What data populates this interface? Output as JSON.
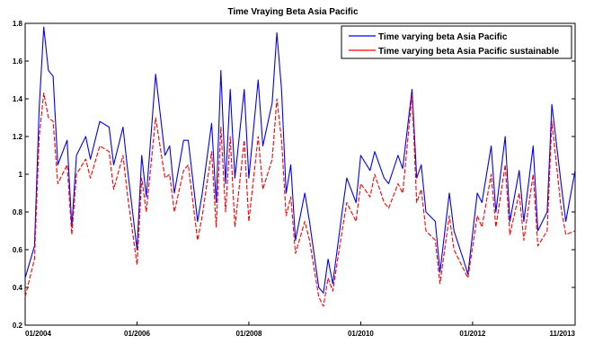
{
  "chart_data": {
    "type": "line",
    "title": "Time Vraying Beta  Asia Pacific",
    "xlabel": "",
    "ylabel": "",
    "x_tick_labels": [
      "01/2004",
      "01/2006",
      "01/2008",
      "01/2010",
      "01/2012",
      "11/2013"
    ],
    "x_ticks": [
      "2004-01",
      "2006-01",
      "2008-01",
      "2010-01",
      "2012-01",
      "2013-11"
    ],
    "xlim": [
      "2004-01",
      "2013-11"
    ],
    "ylim": [
      0.2,
      1.8
    ],
    "y_ticks": [
      0.2,
      0.4,
      0.6,
      0.8,
      1.0,
      1.2,
      1.4,
      1.6,
      1.8
    ],
    "y_tick_labels": [
      "0.2",
      "0.4",
      "0.6",
      "0.8",
      "1",
      "1.2",
      "1.4",
      "1.6",
      "1.8"
    ],
    "grid": false,
    "legend_position": "top-right",
    "series": [
      {
        "name": "Time varying beta Asia Pacific",
        "color": "#0000ff",
        "x": [
          "2004-01",
          "2004-03",
          "2004-04",
          "2004-05",
          "2004-06",
          "2004-07",
          "2004-08",
          "2004-10",
          "2004-11",
          "2004-12",
          "2005-02",
          "2005-03",
          "2005-05",
          "2005-07",
          "2005-08",
          "2005-10",
          "2005-11",
          "2006-01",
          "2006-02",
          "2006-03",
          "2006-05",
          "2006-07",
          "2006-08",
          "2006-09",
          "2006-11",
          "2006-12",
          "2007-02",
          "2007-03",
          "2007-05",
          "2007-06",
          "2007-07",
          "2007-08",
          "2007-09",
          "2007-10",
          "2007-12",
          "2008-01",
          "2008-03",
          "2008-04",
          "2008-06",
          "2008-07",
          "2008-08",
          "2008-09",
          "2008-10",
          "2008-11",
          "2009-01",
          "2009-02",
          "2009-04",
          "2009-05",
          "2009-06",
          "2009-07",
          "2009-09",
          "2009-10",
          "2009-12",
          "2010-01",
          "2010-03",
          "2010-04",
          "2010-06",
          "2010-07",
          "2010-09",
          "2010-10",
          "2010-12",
          "2011-01",
          "2011-02",
          "2011-03",
          "2011-05",
          "2011-06",
          "2011-08",
          "2011-09",
          "2011-11",
          "2011-12",
          "2012-02",
          "2012-03",
          "2012-05",
          "2012-06",
          "2012-08",
          "2012-09",
          "2012-11",
          "2012-12",
          "2013-02",
          "2013-03",
          "2013-05",
          "2013-06",
          "2013-08",
          "2013-09",
          "2013-11"
        ],
        "y": [
          0.45,
          0.62,
          1.35,
          1.78,
          1.55,
          1.52,
          1.05,
          1.18,
          0.72,
          1.1,
          1.2,
          1.08,
          1.28,
          1.25,
          1.05,
          1.25,
          1.02,
          0.6,
          1.1,
          0.88,
          1.53,
          1.1,
          1.15,
          0.9,
          1.18,
          1.18,
          0.75,
          0.9,
          1.27,
          0.85,
          1.55,
          0.95,
          1.45,
          0.98,
          1.45,
          0.98,
          1.5,
          1.15,
          1.38,
          1.75,
          1.45,
          0.9,
          1.05,
          0.65,
          0.9,
          0.75,
          0.4,
          0.37,
          0.55,
          0.42,
          0.8,
          0.98,
          0.85,
          1.1,
          1.02,
          1.12,
          0.98,
          0.95,
          1.1,
          1.03,
          1.45,
          0.98,
          1.05,
          0.8,
          0.75,
          0.48,
          0.9,
          0.7,
          0.55,
          0.47,
          0.9,
          0.85,
          1.15,
          0.8,
          1.2,
          0.75,
          1.02,
          0.75,
          1.15,
          0.7,
          0.8,
          1.37,
          0.95,
          0.75,
          1.02
        ]
      },
      {
        "name": "Time varying beta Asia Pacific sustainable",
        "color": "#ff0000",
        "x": [
          "2004-01",
          "2004-03",
          "2004-04",
          "2004-05",
          "2004-06",
          "2004-07",
          "2004-08",
          "2004-10",
          "2004-11",
          "2004-12",
          "2005-02",
          "2005-03",
          "2005-05",
          "2005-07",
          "2005-08",
          "2005-10",
          "2005-11",
          "2006-01",
          "2006-02",
          "2006-03",
          "2006-05",
          "2006-07",
          "2006-08",
          "2006-09",
          "2006-11",
          "2006-12",
          "2007-02",
          "2007-03",
          "2007-05",
          "2007-06",
          "2007-07",
          "2007-08",
          "2007-09",
          "2007-10",
          "2007-12",
          "2008-01",
          "2008-03",
          "2008-04",
          "2008-06",
          "2008-07",
          "2008-08",
          "2008-09",
          "2008-10",
          "2008-11",
          "2009-01",
          "2009-02",
          "2009-04",
          "2009-05",
          "2009-06",
          "2009-07",
          "2009-09",
          "2009-10",
          "2009-12",
          "2010-01",
          "2010-03",
          "2010-04",
          "2010-06",
          "2010-07",
          "2010-09",
          "2010-10",
          "2010-12",
          "2011-01",
          "2011-02",
          "2011-03",
          "2011-05",
          "2011-06",
          "2011-08",
          "2011-09",
          "2011-11",
          "2011-12",
          "2012-02",
          "2012-03",
          "2012-05",
          "2012-06",
          "2012-08",
          "2012-09",
          "2012-11",
          "2012-12",
          "2013-02",
          "2013-03",
          "2013-05",
          "2013-06",
          "2013-08",
          "2013-09",
          "2013-11"
        ],
        "y": [
          0.35,
          0.55,
          1.2,
          1.43,
          1.3,
          1.28,
          0.95,
          1.05,
          0.68,
          1.0,
          1.08,
          0.98,
          1.15,
          1.12,
          0.92,
          1.1,
          0.88,
          0.52,
          0.98,
          0.8,
          1.3,
          0.98,
          1.0,
          0.8,
          1.02,
          1.05,
          0.65,
          0.78,
          1.12,
          0.72,
          1.25,
          0.8,
          1.2,
          0.72,
          1.18,
          0.75,
          1.2,
          0.92,
          1.08,
          1.4,
          1.18,
          0.78,
          0.88,
          0.58,
          0.75,
          0.65,
          0.35,
          0.3,
          0.45,
          0.38,
          0.7,
          0.85,
          0.75,
          0.95,
          0.88,
          1.0,
          0.85,
          0.82,
          0.95,
          0.9,
          1.42,
          0.85,
          0.92,
          0.7,
          0.65,
          0.42,
          0.78,
          0.6,
          0.5,
          0.45,
          0.78,
          0.72,
          1.0,
          0.72,
          1.05,
          0.68,
          0.9,
          0.65,
          1.0,
          0.62,
          0.7,
          1.28,
          0.82,
          0.68,
          0.7
        ]
      }
    ]
  }
}
